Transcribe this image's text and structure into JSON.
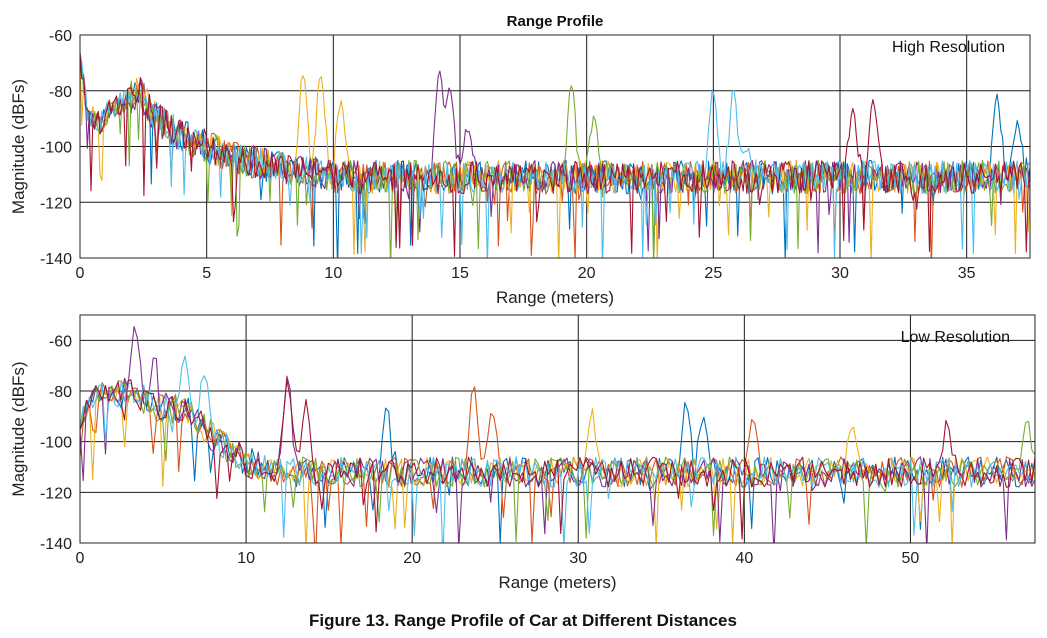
{
  "caption": "Figure 13. Range Profile of Car at Different Distances",
  "series_colors": [
    "#0072BD",
    "#D95319",
    "#EDB120",
    "#7E2F8E",
    "#77AC30",
    "#4DBEEE",
    "#A2142F"
  ],
  "chart_data": [
    {
      "type": "line",
      "title": "Range Profile",
      "annotation": "High Resolution",
      "xlabel": "Range (meters)",
      "ylabel": "Magnitude (dBFs)",
      "xlim": [
        0,
        37.5
      ],
      "ylim": [
        -140,
        -60
      ],
      "xticks": [
        0,
        5,
        10,
        15,
        20,
        25,
        30,
        35
      ],
      "yticks": [
        -140,
        -120,
        -100,
        -80,
        -60
      ],
      "grid": true,
      "noise_floor": -111,
      "near_profile": [
        [
          0,
          -68
        ],
        [
          0.3,
          -88
        ],
        [
          0.8,
          -92
        ],
        [
          1.2,
          -86
        ],
        [
          1.8,
          -84
        ],
        [
          2.3,
          -80
        ],
        [
          3.0,
          -90
        ],
        [
          4.0,
          -96
        ],
        [
          5.0,
          -100
        ],
        [
          6.0,
          -104
        ],
        [
          7.5,
          -107
        ],
        [
          9.0,
          -109
        ],
        [
          10.0,
          -111
        ]
      ],
      "series": [
        {
          "color": "#0072BD",
          "peaks": [
            [
              36.2,
              -82
            ],
            [
              37.0,
              -92
            ]
          ]
        },
        {
          "color": "#D95319",
          "peaks": []
        },
        {
          "color": "#EDB120",
          "peaks": [
            [
              8.8,
              -73
            ],
            [
              9.5,
              -74
            ],
            [
              10.3,
              -84
            ]
          ]
        },
        {
          "color": "#7E2F8E",
          "peaks": [
            [
              14.2,
              -72
            ],
            [
              14.6,
              -78
            ],
            [
              15.3,
              -93
            ]
          ]
        },
        {
          "color": "#77AC30",
          "peaks": [
            [
              19.4,
              -78
            ],
            [
              20.3,
              -90
            ]
          ]
        },
        {
          "color": "#4DBEEE",
          "peaks": [
            [
              25.0,
              -80
            ],
            [
              25.8,
              -80
            ],
            [
              26.3,
              -100
            ]
          ]
        },
        {
          "color": "#A2142F",
          "peaks": [
            [
              30.5,
              -87
            ],
            [
              31.3,
              -85
            ]
          ]
        }
      ]
    },
    {
      "type": "line",
      "annotation": "Low Resolution",
      "xlabel": "Range (meters)",
      "ylabel": "Magnitude (dBFs)",
      "xlim": [
        0,
        57.5
      ],
      "ylim": [
        -140,
        -50
      ],
      "xticks": [
        0,
        10,
        20,
        30,
        40,
        50
      ],
      "yticks": [
        -140,
        -120,
        -100,
        -80,
        -60
      ],
      "grid": true,
      "noise_floor": -112,
      "near_profile": [
        [
          0,
          -92
        ],
        [
          1.0,
          -80
        ],
        [
          2.0,
          -82
        ],
        [
          3.0,
          -80
        ],
        [
          4.5,
          -86
        ],
        [
          6.5,
          -88
        ],
        [
          8.0,
          -98
        ],
        [
          10.0,
          -108
        ],
        [
          12.0,
          -112
        ]
      ],
      "series": [
        {
          "color": "#0072BD",
          "peaks": [
            [
              18.5,
              -86
            ],
            [
              36.5,
              -85
            ],
            [
              37.5,
              -90
            ]
          ]
        },
        {
          "color": "#D95319",
          "peaks": [
            [
              23.7,
              -78
            ],
            [
              24.8,
              -86
            ],
            [
              40.5,
              -89
            ]
          ]
        },
        {
          "color": "#EDB120",
          "peaks": [
            [
              30.8,
              -88
            ],
            [
              46.5,
              -92
            ]
          ]
        },
        {
          "color": "#7E2F8E",
          "peaks": [
            [
              3.3,
              -56
            ],
            [
              4.5,
              -66
            ],
            [
              12.5,
              -74
            ]
          ]
        },
        {
          "color": "#77AC30",
          "peaks": [
            [
              57.0,
              -90
            ]
          ]
        },
        {
          "color": "#4DBEEE",
          "peaks": [
            [
              6.3,
              -66
            ],
            [
              7.5,
              -72
            ]
          ]
        },
        {
          "color": "#A2142F",
          "peaks": [
            [
              12.5,
              -75
            ],
            [
              13.6,
              -85
            ],
            [
              52.2,
              -92
            ]
          ]
        }
      ]
    }
  ]
}
